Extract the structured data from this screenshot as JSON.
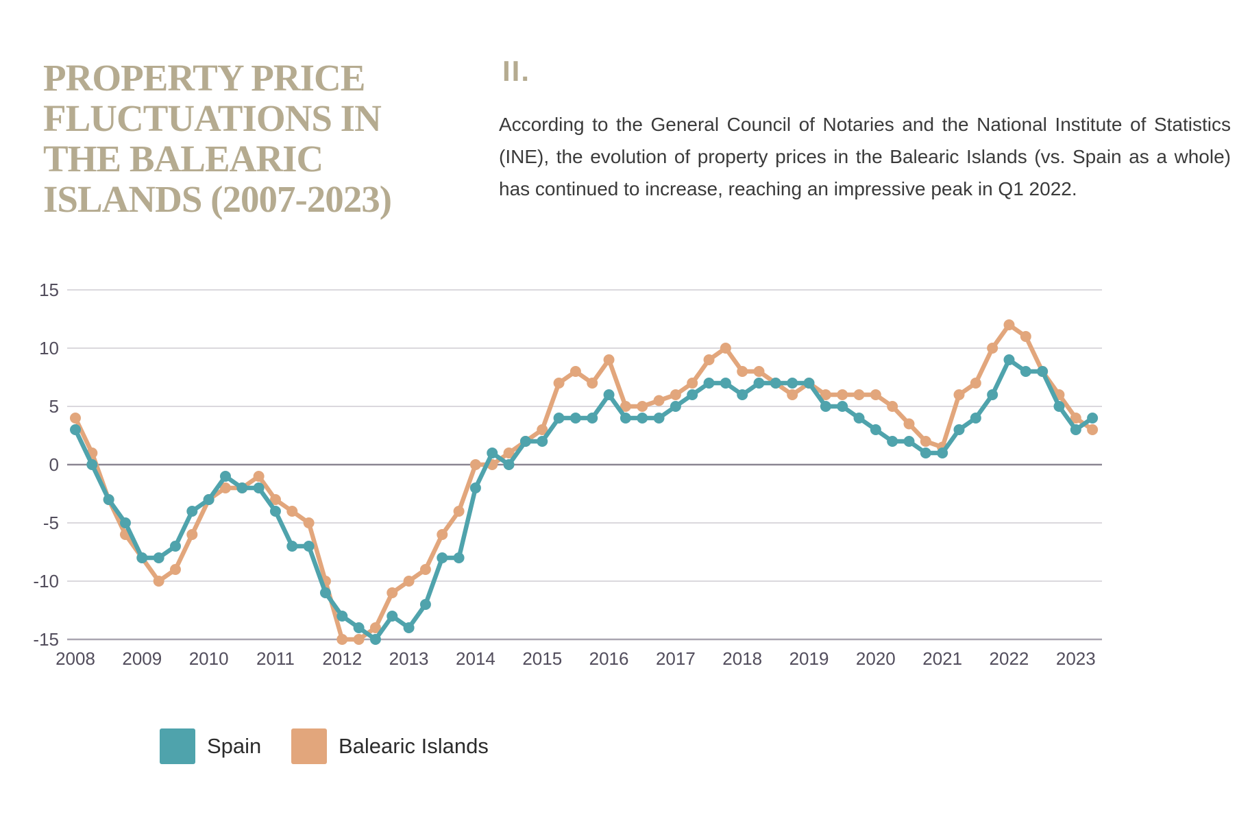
{
  "title": {
    "lines": [
      "PROPERTY PRICE",
      "FLUCTUATIONS IN",
      "THE BALEARIC",
      "ISLANDS (2007-2023)"
    ],
    "color": "#b5ab90"
  },
  "section": {
    "number": "II.",
    "paragraph": "According to the General Council of Notaries and the National Institute of Statistics (INE), the evolution of property prices in the Balearic Islands (vs. Spain as a whole) has continued to increase, reaching an impressive peak in Q1 2022."
  },
  "chart_data": {
    "type": "line",
    "title": "",
    "xlabel": "",
    "ylabel": "",
    "x_unit": "quarter",
    "x_tick_labels": [
      "2008",
      "2009",
      "2010",
      "2011",
      "2012",
      "2013",
      "2014",
      "2015",
      "2016",
      "2017",
      "2018",
      "2019",
      "2020",
      "2021",
      "2022",
      "2023"
    ],
    "yticks": [
      15,
      10,
      5,
      0,
      -5,
      -10,
      -15
    ],
    "ylim": [
      -15,
      15
    ],
    "grid": true,
    "legend_position": "bottom-left",
    "series": [
      {
        "name": "Spain",
        "color": "#4fa3ac",
        "values": [
          3,
          0,
          -3,
          -5,
          -8,
          -8,
          -7,
          -4,
          -3,
          -1,
          -2,
          -2,
          -4,
          -7,
          -7,
          -11,
          -13,
          -14,
          -15,
          -13,
          -14,
          -12,
          -8,
          -8,
          -2,
          1,
          0,
          2,
          2,
          4,
          4,
          4,
          6,
          4,
          4,
          4,
          5,
          6,
          7,
          7,
          6,
          7,
          7,
          7,
          7,
          5,
          5,
          4,
          3,
          2,
          2,
          1,
          1,
          3,
          4,
          6,
          9,
          8,
          8,
          5,
          3,
          4
        ]
      },
      {
        "name": "Balearic Islands",
        "color": "#e2a67c",
        "values": [
          4,
          1,
          -3,
          -6,
          -8,
          -10,
          -9,
          -6,
          -3,
          -2,
          -2,
          -1,
          -3,
          -4,
          -5,
          -10,
          -15,
          -15,
          -14,
          -11,
          -10,
          -9,
          -6,
          -4,
          0,
          0,
          1,
          2,
          3,
          7,
          8,
          7,
          9,
          5,
          5,
          5.5,
          6,
          7,
          9,
          10,
          8,
          8,
          7,
          6,
          7,
          6,
          6,
          6,
          6,
          5,
          3.5,
          2,
          1.5,
          6,
          7,
          10,
          12,
          11,
          8,
          6,
          4,
          3
        ]
      }
    ]
  }
}
